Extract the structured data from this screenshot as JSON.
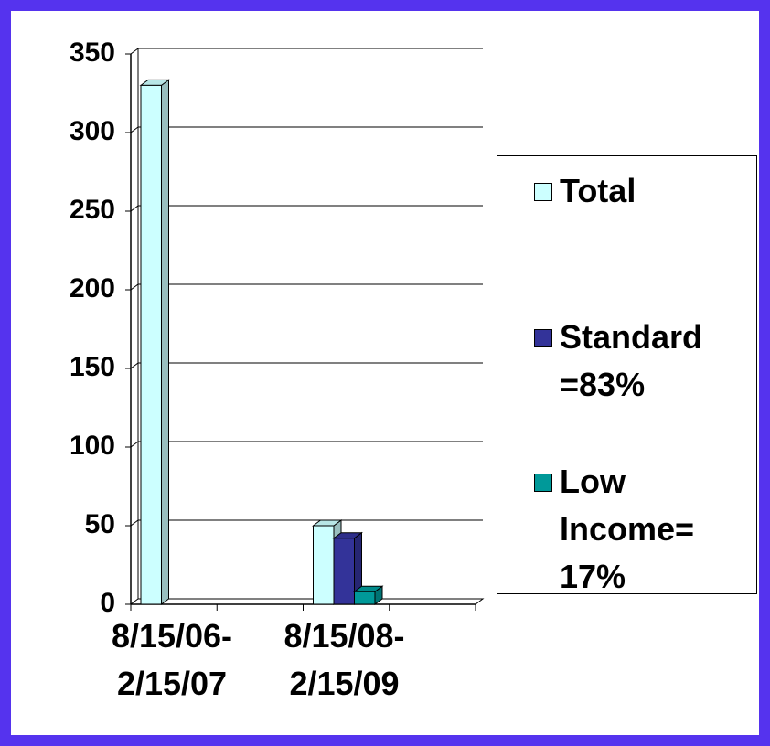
{
  "chart_data": {
    "type": "bar",
    "categories": [
      "8/15/06-2/15/07",
      "8/15/08-2/15/09"
    ],
    "series": [
      {
        "name": "Total",
        "color": "#ccffff",
        "values": [
          330,
          50
        ]
      },
      {
        "name": "Standard =83%",
        "color": "#333399",
        "values": [
          null,
          42
        ]
      },
      {
        "name": "Low Income= 17%",
        "color": "#009999",
        "values": [
          null,
          8
        ]
      }
    ],
    "ylim": [
      0,
      350
    ],
    "yticks": [
      0,
      50,
      100,
      150,
      200,
      250,
      300,
      350
    ],
    "grid": true
  }
}
